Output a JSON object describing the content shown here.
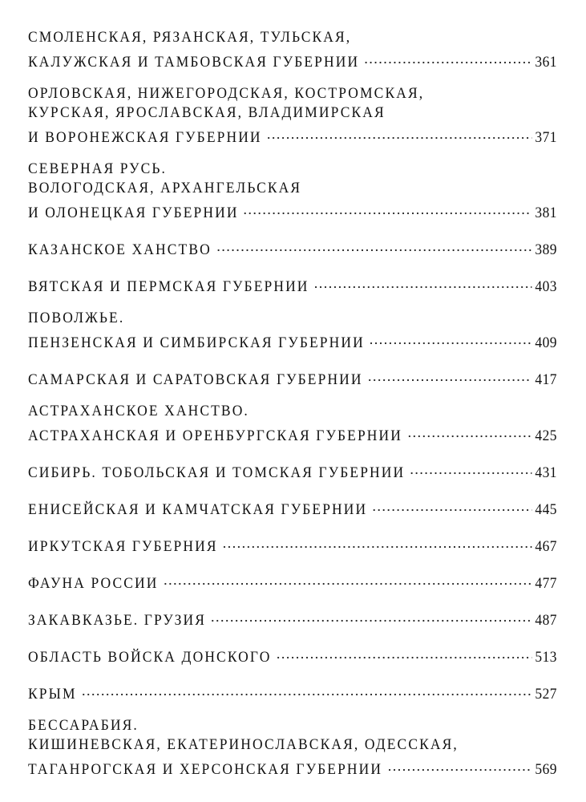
{
  "entries": [
    {
      "lines": [
        "СМОЛЕНСКАЯ, РЯЗАНСКАЯ, ТУЛЬСКАЯ,",
        "КАЛУЖСКАЯ И ТАМБОВСКАЯ ГУБЕРНИИ"
      ],
      "page": "361"
    },
    {
      "lines": [
        "ОРЛОВСКАЯ, НИЖЕГОРОДСКАЯ, КОСТРОМСКАЯ,",
        "КУРСКАЯ, ЯРОСЛАВСКАЯ, ВЛАДИМИРСКАЯ",
        "И ВОРОНЕЖСКАЯ ГУБЕРНИИ"
      ],
      "page": "371"
    },
    {
      "lines": [
        "СЕВЕРНАЯ РУСЬ.",
        "ВОЛОГОДСКАЯ, АРХАНГЕЛЬСКАЯ",
        "И ОЛОНЕЦКАЯ ГУБЕРНИИ"
      ],
      "page": "381"
    },
    {
      "lines": [
        "КАЗАНСКОЕ ХАНСТВО"
      ],
      "page": "389"
    },
    {
      "lines": [
        "ВЯТСКАЯ И ПЕРМСКАЯ ГУБЕРНИИ"
      ],
      "page": "403"
    },
    {
      "lines": [
        "ПОВОЛЖЬЕ.",
        "ПЕНЗЕНСКАЯ И СИМБИРСКАЯ ГУБЕРНИИ"
      ],
      "page": "409"
    },
    {
      "lines": [
        "САМАРСКАЯ И САРАТОВСКАЯ ГУБЕРНИИ"
      ],
      "page": "417"
    },
    {
      "lines": [
        "АСТРАХАНСКОЕ ХАНСТВО.",
        "АСТРАХАНСКАЯ И ОРЕНБУРГСКАЯ ГУБЕРНИИ"
      ],
      "page": "425"
    },
    {
      "lines": [
        "СИБИРЬ. ТОБОЛЬСКАЯ И ТОМСКАЯ ГУБЕРНИИ"
      ],
      "page": "431"
    },
    {
      "lines": [
        "ЕНИСЕЙСКАЯ И КАМЧАТСКАЯ ГУБЕРНИИ"
      ],
      "page": "445"
    },
    {
      "lines": [
        "ИРКУТСКАЯ ГУБЕРНИЯ"
      ],
      "page": "467"
    },
    {
      "lines": [
        "ФАУНА РОССИИ"
      ],
      "page": "477"
    },
    {
      "lines": [
        "ЗАКАВКАЗЬЕ. ГРУЗИЯ"
      ],
      "page": "487"
    },
    {
      "lines": [
        "ОБЛАСТЬ ВОЙСКА ДОНСКОГО"
      ],
      "page": "513"
    },
    {
      "lines": [
        "КРЫМ"
      ],
      "page": "527"
    },
    {
      "lines": [
        "БЕССАРАБИЯ.",
        "КИШИНЕВСКАЯ, ЕКАТЕРИНОСЛАВСКАЯ, ОДЕССКАЯ,",
        "ТАГАНРОГСКАЯ И ХЕРСОНСКАЯ ГУБЕРНИИ"
      ],
      "page": "569"
    }
  ]
}
